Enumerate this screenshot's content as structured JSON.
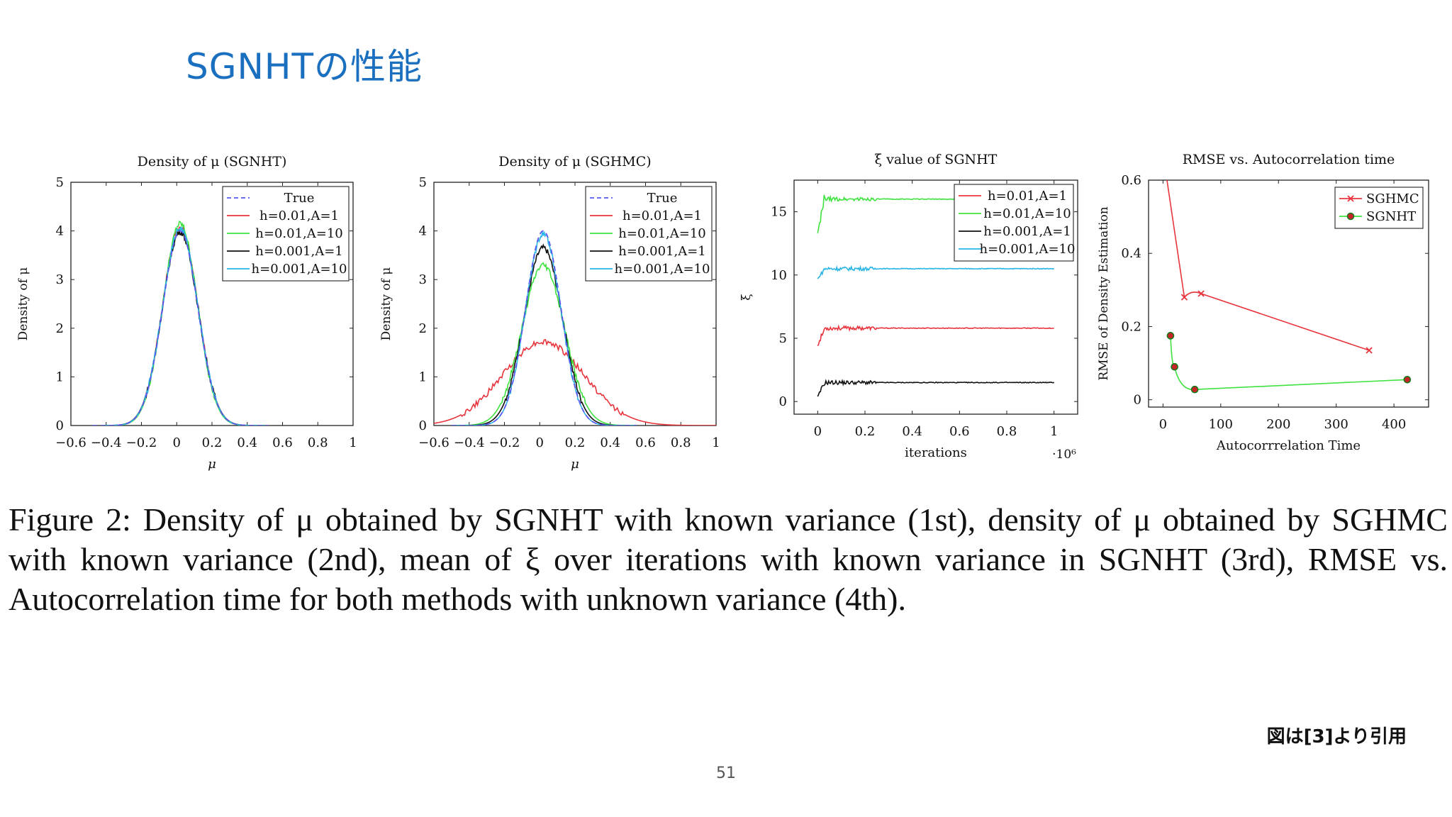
{
  "slide": {
    "title": "SGNHTの性能",
    "caption": "Figure 2: Density of μ obtained by SGNHT with known variance (1st), density of μ obtained by SGHMC with known variance (2nd), mean of ξ over iterations with known variance in SGNHT (3rd), RMSE vs. Autocorrelation time for both methods with unknown variance (4th).",
    "source": "図は[3]より引用",
    "page_number": "51"
  },
  "colors": {
    "true": "#5a5af0",
    "red": "#e8343c",
    "green": "#3fe23f",
    "black": "#111111",
    "cyan": "#29b6e6",
    "title_blue": "#1a6fbf"
  },
  "chart_data": [
    {
      "type": "line",
      "title": "Density of μ (SGNHT)",
      "xlabel": "μ",
      "ylabel": "Density of μ",
      "xlim": [
        -0.6,
        1
      ],
      "ylim": [
        0,
        5
      ],
      "xticks": [
        "−0.6",
        "−0.4",
        "−0.2",
        "0",
        "0.2",
        "0.4",
        "0.6",
        "0.8",
        "1"
      ],
      "yticks": [
        "0",
        "1",
        "2",
        "3",
        "4",
        "5"
      ],
      "legend_position": "top-right",
      "series": [
        {
          "name": "True",
          "kind": "gauss",
          "mean": 0.02,
          "sd": 0.1,
          "peak": 4.0,
          "range": [
            -0.48,
            0.52
          ],
          "style": "dashed",
          "color_key": "true"
        },
        {
          "name": "h=0.01,A=1",
          "kind": "gauss",
          "mean": 0.02,
          "sd": 0.1,
          "peak": 4.08,
          "range": [
            -0.42,
            0.5
          ],
          "color_key": "red"
        },
        {
          "name": "h=0.01,A=10",
          "kind": "gauss",
          "mean": 0.02,
          "sd": 0.098,
          "peak": 4.15,
          "range": [
            -0.42,
            0.5
          ],
          "color_key": "green"
        },
        {
          "name": "h=0.001,A=1",
          "kind": "gauss",
          "mean": 0.02,
          "sd": 0.101,
          "peak": 3.98,
          "range": [
            -0.42,
            0.5
          ],
          "color_key": "black"
        },
        {
          "name": "h=0.001,A=10",
          "kind": "gauss",
          "mean": 0.02,
          "sd": 0.1,
          "peak": 4.05,
          "range": [
            -0.42,
            0.5
          ],
          "color_key": "cyan"
        }
      ]
    },
    {
      "type": "line",
      "title": "Density of μ (SGHMC)",
      "xlabel": "μ",
      "ylabel": "Density of μ",
      "xlim": [
        -0.6,
        1
      ],
      "ylim": [
        0,
        5
      ],
      "xticks": [
        "−0.6",
        "−0.4",
        "−0.2",
        "0",
        "0.2",
        "0.4",
        "0.6",
        "0.8",
        "1"
      ],
      "yticks": [
        "0",
        "1",
        "2",
        "3",
        "4",
        "5"
      ],
      "legend_position": "top-right",
      "series": [
        {
          "name": "True",
          "kind": "gauss",
          "mean": 0.02,
          "sd": 0.1,
          "peak": 4.0,
          "range": [
            -0.5,
            0.55
          ],
          "style": "dashed",
          "color_key": "true"
        },
        {
          "name": "h=0.01,A=1",
          "kind": "gauss",
          "mean": 0.02,
          "sd": 0.23,
          "peak": 1.72,
          "range": [
            -0.6,
            1.0
          ],
          "color_key": "red"
        },
        {
          "name": "h=0.01,A=10",
          "kind": "gauss",
          "mean": 0.02,
          "sd": 0.121,
          "peak": 3.3,
          "range": [
            -0.5,
            0.55
          ],
          "color_key": "green"
        },
        {
          "name": "h=0.001,A=1",
          "kind": "gauss",
          "mean": 0.02,
          "sd": 0.109,
          "peak": 3.65,
          "range": [
            -0.5,
            0.55
          ],
          "color_key": "black"
        },
        {
          "name": "h=0.001,A=10",
          "kind": "gauss",
          "mean": 0.02,
          "sd": 0.1,
          "peak": 3.95,
          "range": [
            -0.5,
            0.55
          ],
          "color_key": "cyan"
        }
      ]
    },
    {
      "type": "line",
      "title": "ξ value of SGNHT",
      "xlabel": "iterations",
      "ylabel": "ξ",
      "x_multiplier": "·10⁶",
      "xlim": [
        -0.1,
        1.1
      ],
      "ylim": [
        -1,
        17.5
      ],
      "xticks": [
        "0",
        "0.2",
        "0.4",
        "0.6",
        "0.8",
        "1"
      ],
      "yticks": [
        "0",
        "5",
        "10",
        "15"
      ],
      "legend_position": "top-right",
      "series": [
        {
          "name": "h=0.01,A=1",
          "kind": "plateau",
          "start": 4.4,
          "final": 5.8,
          "color_key": "red"
        },
        {
          "name": "h=0.01,A=10",
          "kind": "plateau",
          "start": 13.3,
          "final": 16.0,
          "color_key": "green"
        },
        {
          "name": "h=0.001,A=1",
          "kind": "plateau",
          "start": 0.4,
          "final": 1.5,
          "color_key": "black"
        },
        {
          "name": "h=0.001,A=10",
          "kind": "plateau",
          "start": 9.7,
          "final": 10.5,
          "color_key": "cyan"
        }
      ]
    },
    {
      "type": "line",
      "title": "RMSE vs. Autocorrelation time",
      "xlabel": "Autocorrrelation Time",
      "ylabel": "RMSE of Density Estimation",
      "xlim": [
        -25,
        460
      ],
      "ylim": [
        -0.02,
        0.6
      ],
      "xticks": [
        "0",
        "100",
        "200",
        "300",
        "400"
      ],
      "yticks": [
        "0",
        "0.2",
        "0.4",
        "0.6"
      ],
      "legend_position": "top-right",
      "series": [
        {
          "name": "SGHMC",
          "marker": "x",
          "color_key": "red",
          "x": [
            5,
            37,
            66,
            357
          ],
          "y": [
            0.62,
            0.28,
            0.29,
            0.135
          ]
        },
        {
          "name": "SGNHT",
          "marker": "o",
          "color_key": "green",
          "x": [
            13,
            20,
            55,
            423
          ],
          "y": [
            0.175,
            0.09,
            0.028,
            0.055
          ]
        }
      ]
    }
  ]
}
